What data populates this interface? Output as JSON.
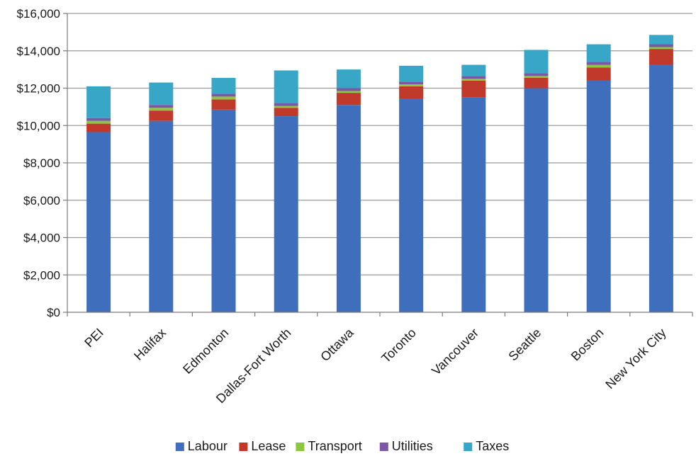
{
  "chart_data": {
    "type": "bar",
    "stacked": true,
    "categories": [
      "PEI",
      "Halifax",
      "Edmonton",
      "Dallas-Fort Worth",
      "Ottawa",
      "Toronto",
      "Vancouver",
      "Seattle",
      "Boston",
      "New York City"
    ],
    "series": [
      {
        "name": "Labour",
        "color": "#3f6fbc",
        "values": [
          9650,
          10250,
          10850,
          10500,
          11100,
          11450,
          11500,
          12000,
          12400,
          13250
        ]
      },
      {
        "name": "Lease",
        "color": "#c0392b",
        "values": [
          450,
          550,
          550,
          450,
          650,
          650,
          900,
          550,
          700,
          850
        ]
      },
      {
        "name": "Transport",
        "color": "#8dc63f",
        "values": [
          150,
          150,
          150,
          100,
          100,
          100,
          100,
          100,
          150,
          100
        ]
      },
      {
        "name": "Utilities",
        "color": "#7b57a6",
        "values": [
          150,
          150,
          150,
          150,
          150,
          150,
          150,
          150,
          150,
          150
        ]
      },
      {
        "name": "Taxes",
        "color": "#38a6c6",
        "values": [
          1700,
          1200,
          850,
          1750,
          1000,
          850,
          600,
          1250,
          950,
          500
        ]
      }
    ],
    "title": "",
    "xlabel": "",
    "ylabel": "",
    "ylim": [
      0,
      16000
    ],
    "yticks": [
      0,
      2000,
      4000,
      6000,
      8000,
      10000,
      12000,
      14000,
      16000
    ],
    "ytick_labels": [
      "$0",
      "$2,000",
      "$4,000",
      "$6,000",
      "$8,000",
      "$10,000",
      "$12,000",
      "$14,000",
      "$16,000"
    ],
    "grid": true,
    "legend_position": "bottom"
  }
}
